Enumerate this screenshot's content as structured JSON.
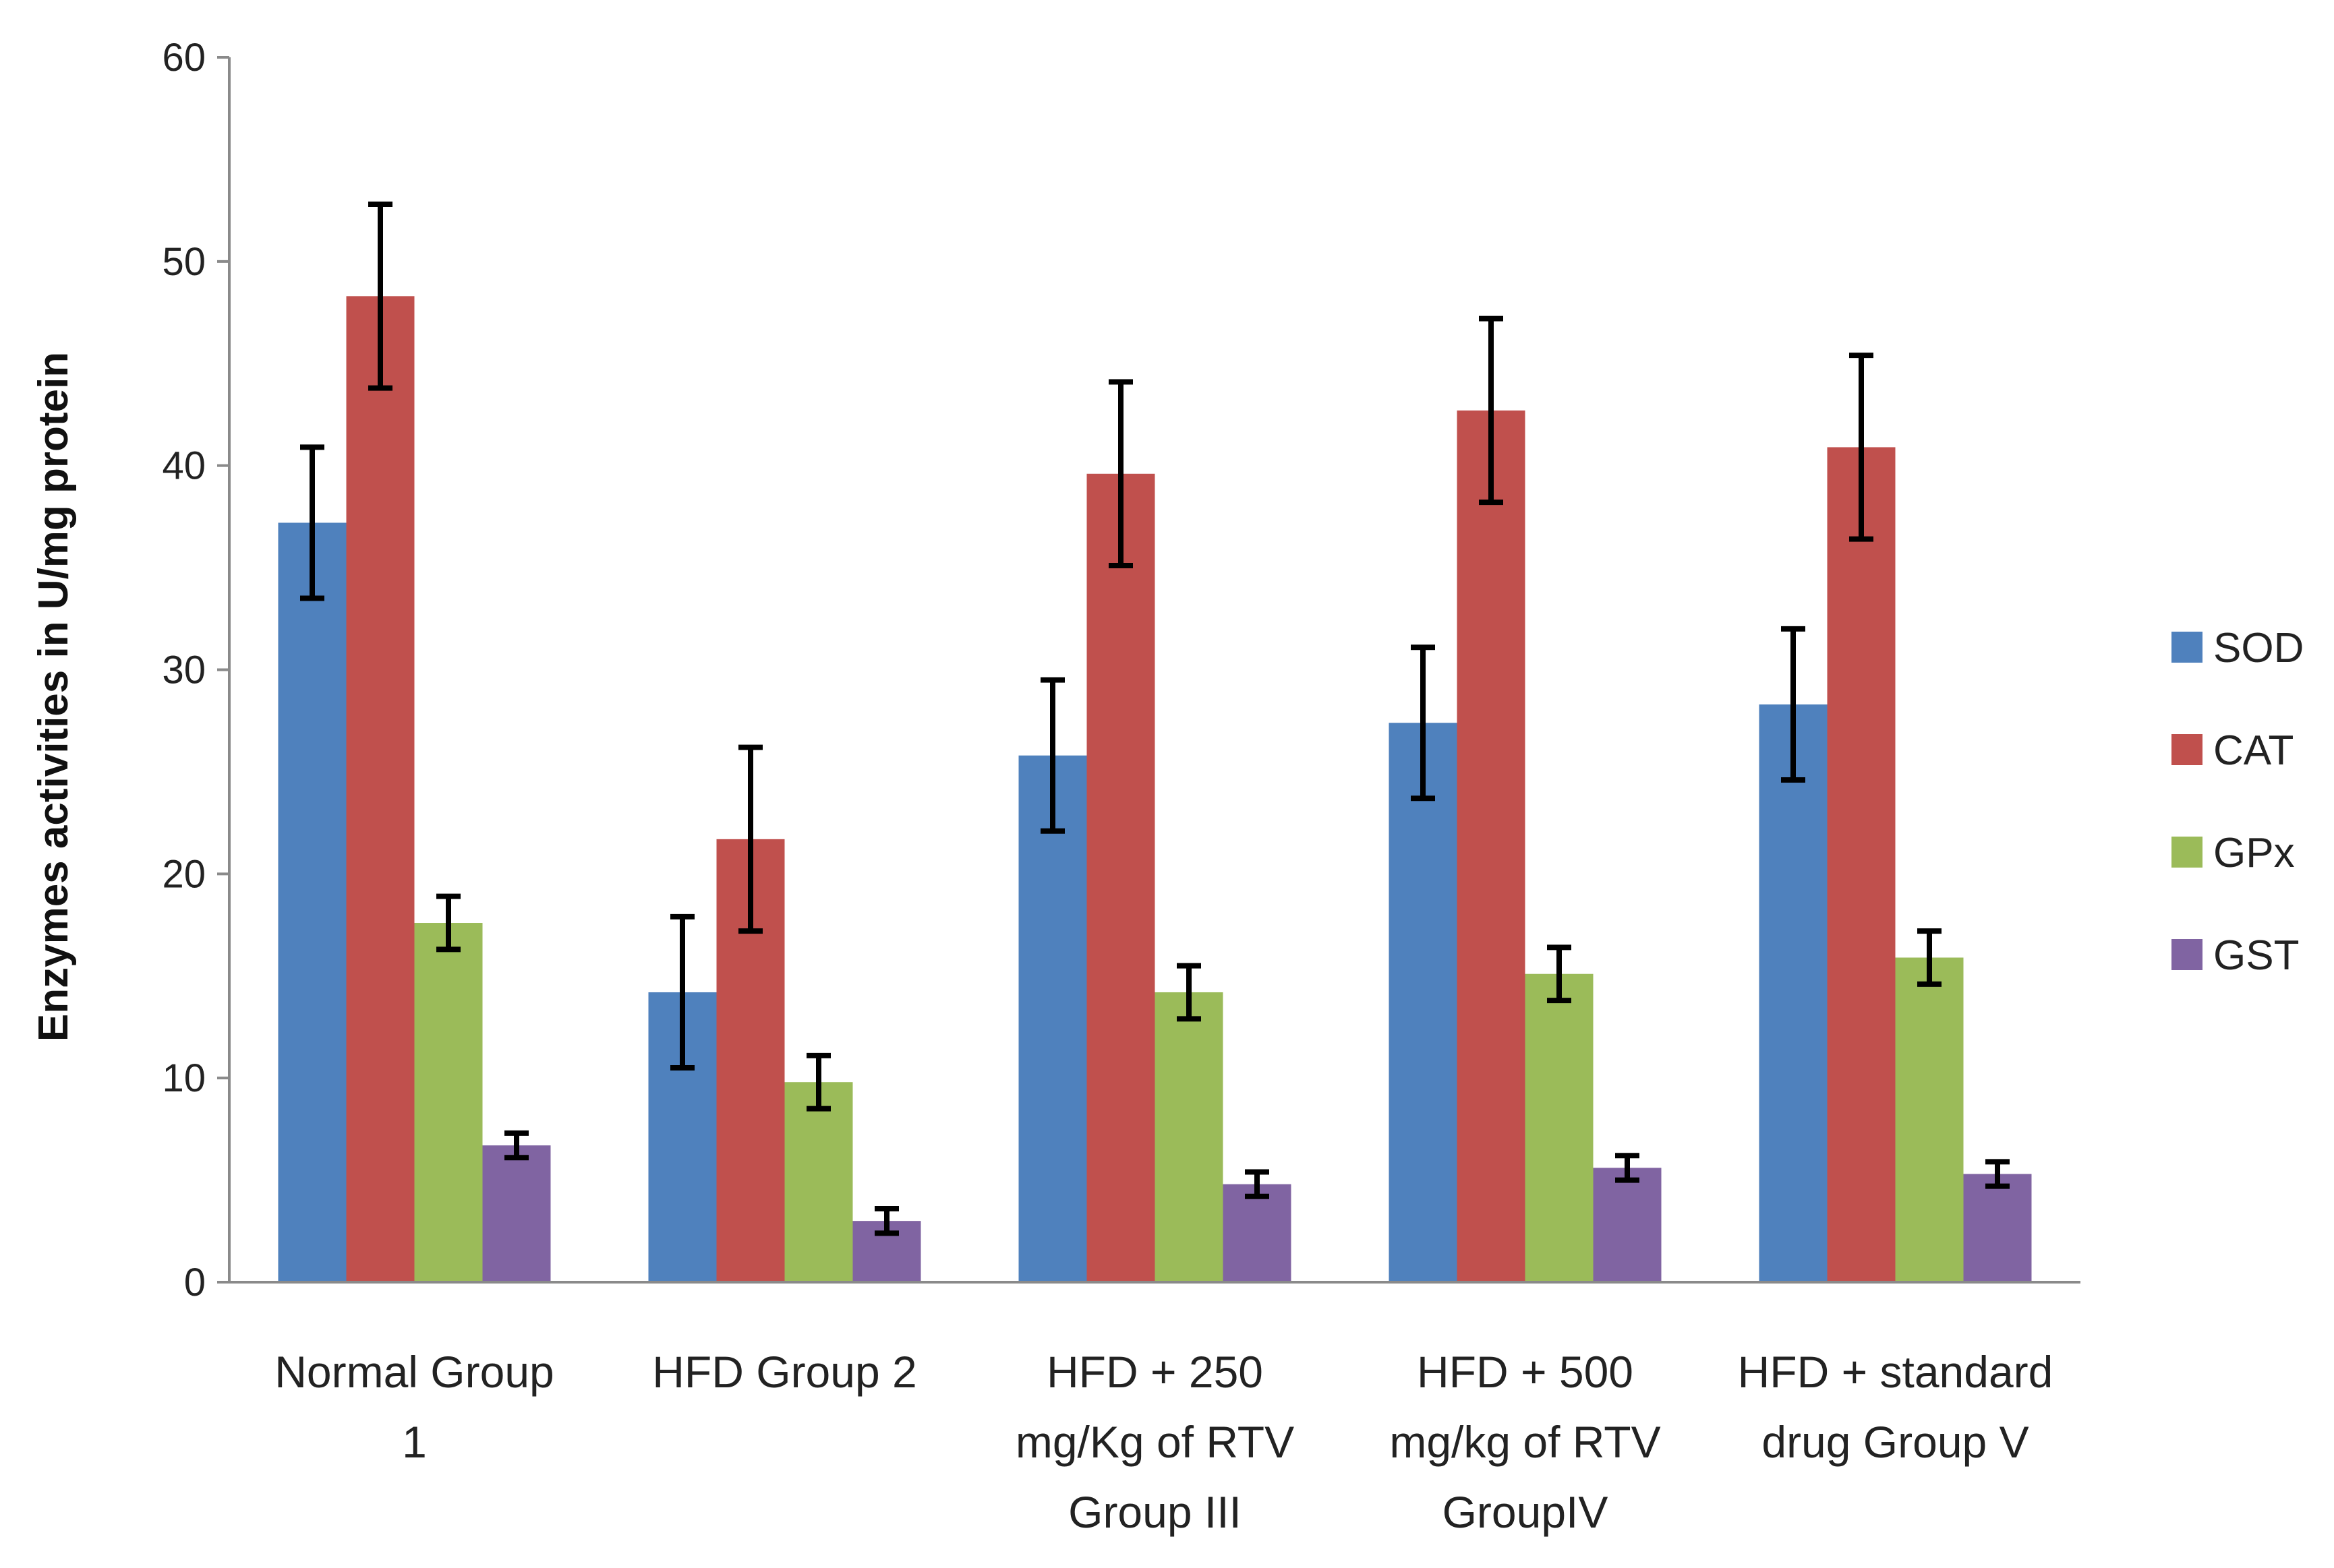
{
  "chart_data": {
    "type": "bar",
    "title": "",
    "xlabel": "",
    "ylabel": "Enzymes activities in U/mg protein",
    "ylim": [
      0,
      60
    ],
    "yticks": [
      0,
      10,
      20,
      30,
      40,
      50,
      60
    ],
    "grid": false,
    "legend_position": "right",
    "categories": [
      [
        "Normal Group",
        "1"
      ],
      [
        "HFD Group 2"
      ],
      [
        "HFD + 250",
        "mg/Kg of RTV",
        "Group III"
      ],
      [
        "HFD + 500",
        "mg/kg of RTV",
        "GroupIV"
      ],
      [
        "HFD + standard",
        "drug Group V"
      ]
    ],
    "series": [
      {
        "name": "SOD",
        "color": "#4f81bd",
        "values": [
          37.2,
          14.2,
          25.8,
          27.4,
          28.3
        ],
        "errors": [
          3.7,
          3.7,
          3.7,
          3.7,
          3.7
        ]
      },
      {
        "name": "CAT",
        "color": "#c0504d",
        "values": [
          48.3,
          21.7,
          39.6,
          42.7,
          40.9
        ],
        "errors": [
          4.5,
          4.5,
          4.5,
          4.5,
          4.5
        ]
      },
      {
        "name": "GPx",
        "color": "#9bbb59",
        "values": [
          17.6,
          9.8,
          14.2,
          15.1,
          15.9
        ],
        "errors": [
          1.3,
          1.3,
          1.3,
          1.3,
          1.3
        ]
      },
      {
        "name": "GST",
        "color": "#8064a2",
        "values": [
          6.7,
          3.0,
          4.8,
          5.6,
          5.3
        ],
        "errors": [
          0.6,
          0.6,
          0.6,
          0.6,
          0.6
        ]
      }
    ]
  }
}
